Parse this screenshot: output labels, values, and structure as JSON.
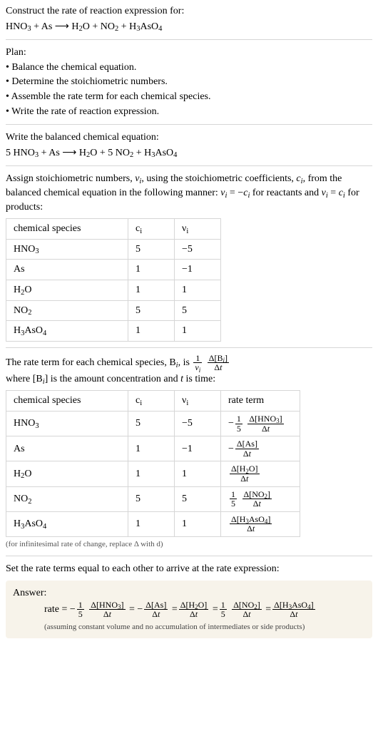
{
  "intro": {
    "prompt": "Construct the rate of reaction expression for:",
    "equation_html": "HNO<sub>3</sub> + As  ⟶  H<sub>2</sub>O + NO<sub>2</sub> + H<sub>3</sub>AsO<sub>4</sub>"
  },
  "plan": {
    "title": "Plan:",
    "items": [
      "• Balance the chemical equation.",
      "• Determine the stoichiometric numbers.",
      "• Assemble the rate term for each chemical species.",
      "• Write the rate of reaction expression."
    ]
  },
  "balanced": {
    "title": "Write the balanced chemical equation:",
    "equation_html": "5 HNO<sub>3</sub> + As  ⟶  H<sub>2</sub>O + 5 NO<sub>2</sub> + H<sub>3</sub>AsO<sub>4</sub>"
  },
  "stoich": {
    "intro_html": "Assign stoichiometric numbers, <span class='ital'>ν<sub>i</sub></span>, using the stoichiometric coefficients, <span class='ital'>c<sub>i</sub></span>, from the balanced chemical equation in the following manner: <span class='ital'>ν<sub>i</sub></span> = −<span class='ital'>c<sub>i</sub></span> for reactants and <span class='ital'>ν<sub>i</sub></span> = <span class='ital'>c<sub>i</sub></span> for products:",
    "columns": [
      "chemical species",
      "c<sub>i</sub>",
      "ν<sub>i</sub>"
    ],
    "rows": [
      [
        "HNO<sub>3</sub>",
        "5",
        "−5"
      ],
      [
        "As",
        "1",
        "−1"
      ],
      [
        "H<sub>2</sub>O",
        "1",
        "1"
      ],
      [
        "NO<sub>2</sub>",
        "5",
        "5"
      ],
      [
        "H<sub>3</sub>AsO<sub>4</sub>",
        "1",
        "1"
      ]
    ],
    "col_widths": [
      "150px",
      "44px",
      "44px"
    ]
  },
  "rateterm": {
    "intro_pre": "The rate term for each chemical species, B<sub><span class='ital'>i</span></sub>, is ",
    "intro_post": " where [B<sub><span class='ital'>i</span></sub>] is the amount concentration and <span class='ital'>t</span> is time:",
    "main_frac": {
      "num1": "1",
      "den1_html": "<span class='ital'>ν<sub>i</sub></span>",
      "num2_html": "Δ[B<sub><span class='ital'>i</span></sub>]",
      "den2_html": "Δ<span class='ital'>t</span>"
    },
    "columns": [
      "chemical species",
      "c<sub>i</sub>",
      "ν<sub>i</sub>",
      "rate term"
    ],
    "col_widths": [
      "150px",
      "44px",
      "44px",
      "90px"
    ],
    "rows": [
      {
        "species": "HNO<sub>3</sub>",
        "c": "5",
        "nu": "−5",
        "term": {
          "prefix": "−",
          "coef_num": "1",
          "coef_den": "5",
          "num": "Δ[HNO<sub>3</sub>]",
          "den": "Δ<span class='ital'>t</span>"
        }
      },
      {
        "species": "As",
        "c": "1",
        "nu": "−1",
        "term": {
          "prefix": "−",
          "coef_num": null,
          "coef_den": null,
          "num": "Δ[As]",
          "den": "Δ<span class='ital'>t</span>"
        }
      },
      {
        "species": "H<sub>2</sub>O",
        "c": "1",
        "nu": "1",
        "term": {
          "prefix": "",
          "coef_num": null,
          "coef_den": null,
          "num": "Δ[H<sub>2</sub>O]",
          "den": "Δ<span class='ital'>t</span>"
        }
      },
      {
        "species": "NO<sub>2</sub>",
        "c": "5",
        "nu": "5",
        "term": {
          "prefix": "",
          "coef_num": "1",
          "coef_den": "5",
          "num": "Δ[NO<sub>2</sub>]",
          "den": "Δ<span class='ital'>t</span>"
        }
      },
      {
        "species": "H<sub>3</sub>AsO<sub>4</sub>",
        "c": "1",
        "nu": "1",
        "term": {
          "prefix": "",
          "coef_num": null,
          "coef_den": null,
          "num": "Δ[H<sub>3</sub>AsO<sub>4</sub>]",
          "den": "Δ<span class='ital'>t</span>"
        }
      }
    ],
    "table_note": "(for infinitesimal rate of change, replace Δ with d)"
  },
  "final": {
    "title": "Set the rate terms equal to each other to arrive at the rate expression:",
    "answer_label": "Answer:",
    "rate_label": "rate =",
    "terms": [
      {
        "prefix": "−",
        "coef_num": "1",
        "coef_den": "5",
        "num": "Δ[HNO<sub>3</sub>]",
        "den": "Δ<span class='ital'>t</span>"
      },
      {
        "prefix": "= −",
        "coef_num": null,
        "coef_den": null,
        "num": "Δ[As]",
        "den": "Δ<span class='ital'>t</span>"
      },
      {
        "prefix": "=",
        "coef_num": null,
        "coef_den": null,
        "num": "Δ[H<sub>2</sub>O]",
        "den": "Δ<span class='ital'>t</span>"
      },
      {
        "prefix": "=",
        "coef_num": "1",
        "coef_den": "5",
        "num": "Δ[NO<sub>2</sub>]",
        "den": "Δ<span class='ital'>t</span>"
      },
      {
        "prefix": "=",
        "coef_num": null,
        "coef_den": null,
        "num": "Δ[H<sub>3</sub>AsO<sub>4</sub>]",
        "den": "Δ<span class='ital'>t</span>"
      }
    ],
    "assumption": "(assuming constant volume and no accumulation of intermediates or side products)"
  },
  "style": {
    "background": "#ffffff",
    "hr_color": "#d6d6d6",
    "answer_bg": "#f7f3ea",
    "note_color": "#555555",
    "base_font_size": 14,
    "frac_font_size": 12
  }
}
